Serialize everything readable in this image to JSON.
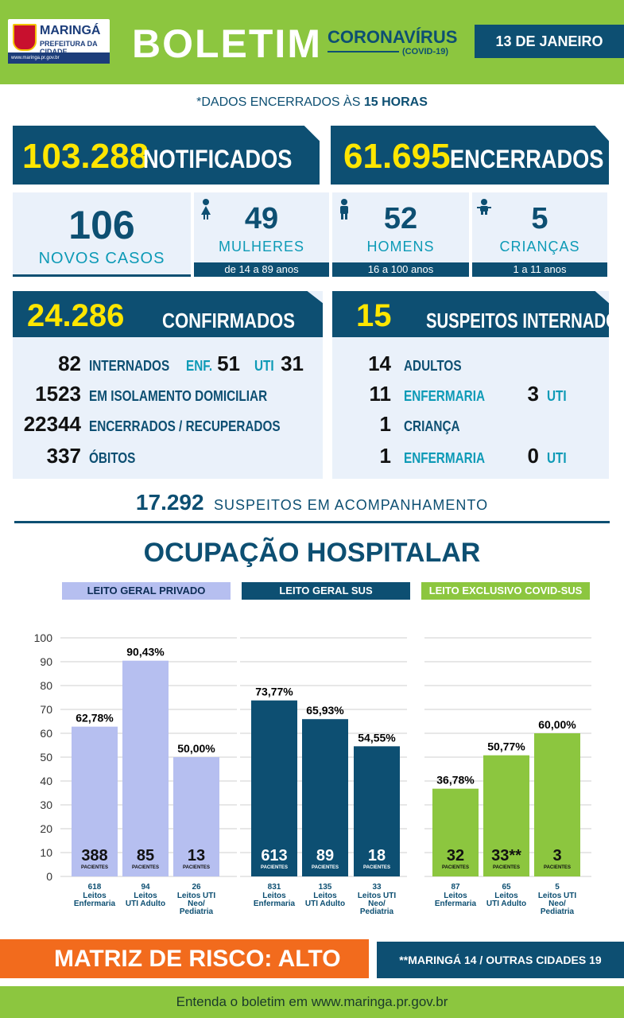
{
  "header": {
    "logo_name": "MARINGÁ",
    "logo_sub": "PREFEITURA DA CIDADE",
    "logo_url": "www.maringa.pr.gov.br",
    "title": "BOLETIM",
    "subtitle": "CORONAVÍRUS",
    "subtitle2": "(COVID-19)",
    "date": "13 DE JANEIRO"
  },
  "data_note_prefix": "*DADOS ENCERRADOS ÀS ",
  "data_note_hours": "15 HORAS",
  "totals": {
    "notified_value": "103.288",
    "notified_label": "NOTIFICADOS",
    "closed_value": "61.695",
    "closed_label": "ENCERRADOS"
  },
  "new_cases": {
    "value": "106",
    "label": "NOVOS CASOS",
    "women": {
      "value": "49",
      "label": "MULHERES",
      "range": "de 14 a 89 anos"
    },
    "men": {
      "value": "52",
      "label": "HOMENS",
      "range": "16 a 100 anos"
    },
    "children": {
      "value": "5",
      "label": "CRIANÇAS",
      "range": "1 a 11 anos"
    }
  },
  "confirmed": {
    "value": "24.286",
    "label": "CONFIRMADOS",
    "hospitalized_value": "82",
    "hospitalized_label": "INTERNADOS",
    "ward_label": "ENF.",
    "ward_value": "51",
    "icu_label": "UTI",
    "icu_value": "31",
    "home_value": "1523",
    "home_label": "EM ISOLAMENTO DOMICILIAR",
    "recovered_value": "22344",
    "recovered_label": "ENCERRADOS / RECUPERADOS",
    "deaths_value": "337",
    "deaths_label": "ÓBITOS"
  },
  "suspects": {
    "value": "15",
    "label": "SUSPEITOS INTERNADOS",
    "adults_value": "14",
    "adults_label": "ADULTOS",
    "adult_ward_value": "11",
    "adult_ward_label": "ENFERMARIA",
    "adult_icu_value": "3",
    "adult_icu_label": "UTI",
    "child_value": "1",
    "child_label": "CRIANÇA",
    "child_ward_value": "1",
    "child_ward_label": "ENFERMARIA",
    "child_icu_value": "0",
    "child_icu_label": "UTI"
  },
  "monitoring": {
    "value": "17.292",
    "label": "SUSPEITOS EM ACOMPANHAMENTO"
  },
  "hospital_title": "OCUPAÇÃO HOSPITALAR",
  "section_heads": [
    "LEITO GERAL PRIVADO",
    "LEITO GERAL SUS",
    "LEITO EXCLUSIVO COVID-SUS"
  ],
  "chart_data": {
    "type": "bar",
    "ylim": [
      0,
      100
    ],
    "yticks": [
      0,
      10,
      20,
      30,
      40,
      50,
      60,
      70,
      80,
      90,
      100
    ],
    "patients_label": "PACIENTES",
    "colors": {
      "private": "#b6bff0",
      "sus": "#0d4f72",
      "covid": "#8cc63f"
    },
    "groups": [
      {
        "name": "LEITO GERAL PRIVADO",
        "bars": [
          {
            "value": 62.78,
            "label": "62,78%",
            "patients": "388",
            "beds": "618",
            "category": "Leitos Enfermaria"
          },
          {
            "value": 90.43,
            "label": "90,43%",
            "patients": "85",
            "beds": "94",
            "category": "Leitos UTI Adulto"
          },
          {
            "value": 50.0,
            "label": "50,00%",
            "patients": "13",
            "beds": "26",
            "category": "Leitos UTI Neo/ Pediatria"
          }
        ]
      },
      {
        "name": "LEITO GERAL SUS",
        "bars": [
          {
            "value": 73.77,
            "label": "73,77%",
            "patients": "613",
            "beds": "831",
            "category": "Leitos Enfermaria"
          },
          {
            "value": 65.93,
            "label": "65,93%",
            "patients": "89",
            "beds": "135",
            "category": "Leitos UTI Adulto"
          },
          {
            "value": 54.55,
            "label": "54,55%",
            "patients": "18",
            "beds": "33",
            "category": "Leitos UTI Neo/ Pediatria"
          }
        ]
      },
      {
        "name": "LEITO EXCLUSIVO COVID-SUS",
        "bars": [
          {
            "value": 36.78,
            "label": "36,78%",
            "patients": "32",
            "beds": "87",
            "category": "Leitos Enfermaria"
          },
          {
            "value": 50.77,
            "label": "50,77%",
            "patients": "33**",
            "beds": "65",
            "category": "Leitos UTI Adulto"
          },
          {
            "value": 60.0,
            "label": "60,00%",
            "patients": "3",
            "beds": "5",
            "category": "Leitos UTI Neo/ Pediatria"
          }
        ]
      }
    ]
  },
  "risk": {
    "label": "MATRIZ DE RISCO: ALTO",
    "note": "**MARINGÁ 14 / OUTRAS CIDADES 19"
  },
  "footer": "Entenda o boletim em www.maringa.pr.gov.br"
}
